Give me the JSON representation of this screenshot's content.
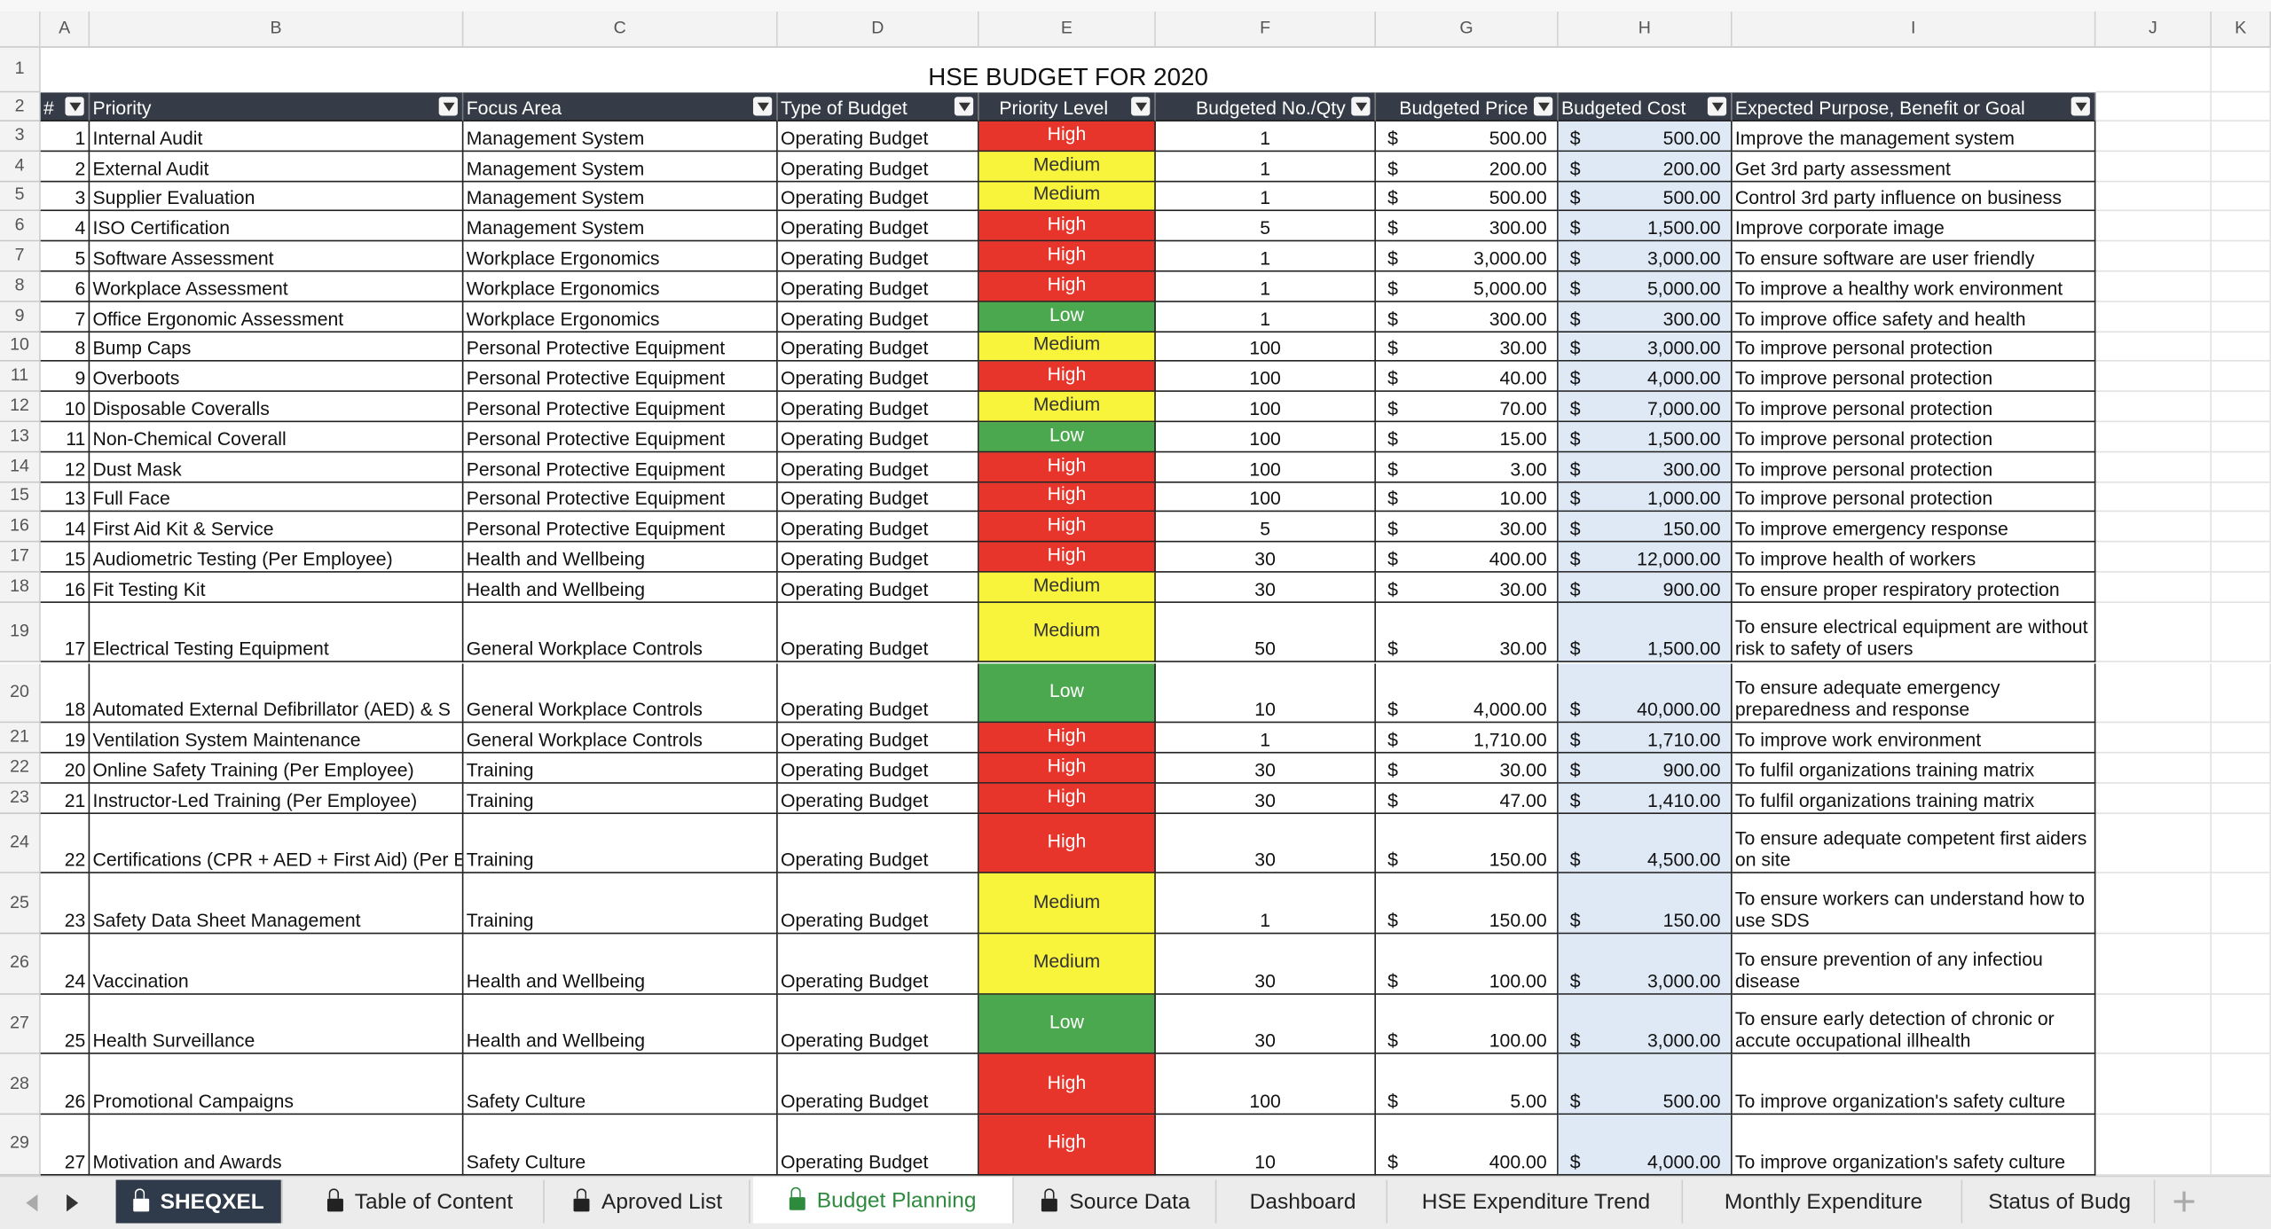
{
  "title": "HSE BUDGET FOR 2020",
  "column_letters": [
    "A",
    "B",
    "C",
    "D",
    "E",
    "F",
    "G",
    "H",
    "I",
    "J",
    "K"
  ],
  "row_numbers": [
    "1",
    "2",
    "3",
    "4",
    "5",
    "6",
    "7",
    "8",
    "9",
    "10",
    "11",
    "12",
    "13",
    "14",
    "15",
    "16",
    "17",
    "18",
    "19",
    "20",
    "21",
    "22",
    "23",
    "24",
    "25",
    "26",
    "27",
    "28",
    "29"
  ],
  "currency": "$",
  "level_colors": {
    "High": "#e8352b",
    "Medium": "#f8f43c",
    "Low": "#4ca84f"
  },
  "level_text_colors": {
    "High": "#ffffff",
    "Medium": "#333333",
    "Low": "#ffffff"
  },
  "table": {
    "headers": [
      "#",
      "Priority",
      "Focus Area",
      "Type of Budget",
      "Priority Level",
      "Budgeted No./Qty",
      "Budgeted Price",
      "Budgeted Cost",
      "Expected Purpose, Benefit or Goal"
    ],
    "rows": [
      [
        "1",
        "Internal Audit",
        "Management System",
        "Operating Budget",
        "High",
        "1",
        "500.00",
        "500.00",
        "Improve the management system"
      ],
      [
        "2",
        "External Audit",
        "Management System",
        "Operating Budget",
        "Medium",
        "1",
        "200.00",
        "200.00",
        "Get 3rd party assessment"
      ],
      [
        "3",
        "Supplier Evaluation",
        "Management System",
        "Operating Budget",
        "Medium",
        "1",
        "500.00",
        "500.00",
        "Control 3rd party influence on business"
      ],
      [
        "4",
        "ISO Certification",
        "Management System",
        "Operating Budget",
        "High",
        "5",
        "300.00",
        "1,500.00",
        "Improve corporate image"
      ],
      [
        "5",
        "Software Assessment",
        "Workplace Ergonomics",
        "Operating Budget",
        "High",
        "1",
        "3,000.00",
        "3,000.00",
        "To ensure software are user friendly"
      ],
      [
        "6",
        "Workplace Assessment",
        "Workplace Ergonomics",
        "Operating Budget",
        "High",
        "1",
        "5,000.00",
        "5,000.00",
        "To improve a healthy work environment"
      ],
      [
        "7",
        "Office Ergonomic Assessment",
        "Workplace Ergonomics",
        "Operating Budget",
        "Low",
        "1",
        "300.00",
        "300.00",
        "To improve office safety and health"
      ],
      [
        "8",
        "Bump Caps",
        "Personal Protective Equipment",
        "Operating Budget",
        "Medium",
        "100",
        "30.00",
        "3,000.00",
        "To improve personal protection"
      ],
      [
        "9",
        "Overboots",
        "Personal Protective Equipment",
        "Operating Budget",
        "High",
        "100",
        "40.00",
        "4,000.00",
        "To improve personal protection"
      ],
      [
        "10",
        "Disposable Coveralls",
        "Personal Protective Equipment",
        "Operating Budget",
        "Medium",
        "100",
        "70.00",
        "7,000.00",
        "To improve personal protection"
      ],
      [
        "11",
        "Non-Chemical Coverall",
        "Personal Protective Equipment",
        "Operating Budget",
        "Low",
        "100",
        "15.00",
        "1,500.00",
        "To improve personal protection"
      ],
      [
        "12",
        "Dust Mask",
        "Personal Protective Equipment",
        "Operating Budget",
        "High",
        "100",
        "3.00",
        "300.00",
        "To improve personal protection"
      ],
      [
        "13",
        "Full Face",
        "Personal Protective Equipment",
        "Operating Budget",
        "High",
        "100",
        "10.00",
        "1,000.00",
        "To improve personal protection"
      ],
      [
        "14",
        "First Aid Kit & Service",
        "Personal Protective Equipment",
        "Operating Budget",
        "High",
        "5",
        "30.00",
        "150.00",
        "To improve emergency response"
      ],
      [
        "15",
        "Audiometric Testing (Per Employee)",
        "Health and Wellbeing",
        "Operating Budget",
        "High",
        "30",
        "400.00",
        "12,000.00",
        "To improve health of workers"
      ],
      [
        "16",
        "Fit Testing Kit",
        "Health and Wellbeing",
        "Operating Budget",
        "Medium",
        "30",
        "30.00",
        "900.00",
        "To ensure proper respiratory protection"
      ],
      [
        "17",
        "Electrical Testing Equipment",
        "General Workplace Controls",
        "Operating Budget",
        "Medium",
        "50",
        "30.00",
        "1,500.00",
        "To ensure electrical equipment are without risk to safety of users"
      ],
      [
        "18",
        "Automated External Defibrillator (AED) & S",
        "General Workplace Controls",
        "Operating Budget",
        "Low",
        "10",
        "4,000.00",
        "40,000.00",
        "To ensure adequate emergency preparedness and response"
      ],
      [
        "19",
        "Ventilation System Maintenance",
        "General Workplace Controls",
        "Operating Budget",
        "High",
        "1",
        "1,710.00",
        "1,710.00",
        "To improve work environment"
      ],
      [
        "20",
        "Online Safety Training (Per Employee)",
        "Training",
        "Operating Budget",
        "High",
        "30",
        "30.00",
        "900.00",
        "To fulfil organizations training matrix"
      ],
      [
        "21",
        "Instructor-Led Training (Per Employee)",
        "Training",
        "Operating Budget",
        "High",
        "30",
        "47.00",
        "1,410.00",
        "To fulfil organizations training matrix"
      ],
      [
        "22",
        "Certifications (CPR + AED + First Aid) (Per E",
        "Training",
        "Operating Budget",
        "High",
        "30",
        "150.00",
        "4,500.00",
        "To ensure adequate competent first aiders on site"
      ],
      [
        "23",
        "Safety Data Sheet Management",
        "Training",
        "Operating Budget",
        "Medium",
        "1",
        "150.00",
        "150.00",
        "To ensure workers can understand how to use SDS"
      ],
      [
        "24",
        "Vaccination",
        "Health and Wellbeing",
        "Operating Budget",
        "Medium",
        "30",
        "100.00",
        "3,000.00",
        "To ensure prevention of any infectiou disease"
      ],
      [
        "25",
        "Health Surveillance",
        "Health and Wellbeing",
        "Operating Budget",
        "Low",
        "30",
        "100.00",
        "3,000.00",
        "To ensure early detection of chronic or accute occupational illhealth"
      ],
      [
        "26",
        "Promotional Campaigns",
        "Safety Culture",
        "Operating Budget",
        "High",
        "100",
        "5.00",
        "500.00",
        "To improve organization's safety culture"
      ],
      [
        "27",
        "Motivation and Awards",
        "Safety Culture",
        "Operating Budget",
        "High",
        "10",
        "400.00",
        "4,000.00",
        "To improve organization's safety culture"
      ]
    ]
  },
  "sheet_tabs": [
    "SHEQXEL",
    "Table of Content",
    "Aproved List",
    "Budget Planning",
    "Source Data",
    "Dashboard",
    "HSE Expenditure Trend",
    "Monthly Expenditure",
    "Status of Budg"
  ]
}
